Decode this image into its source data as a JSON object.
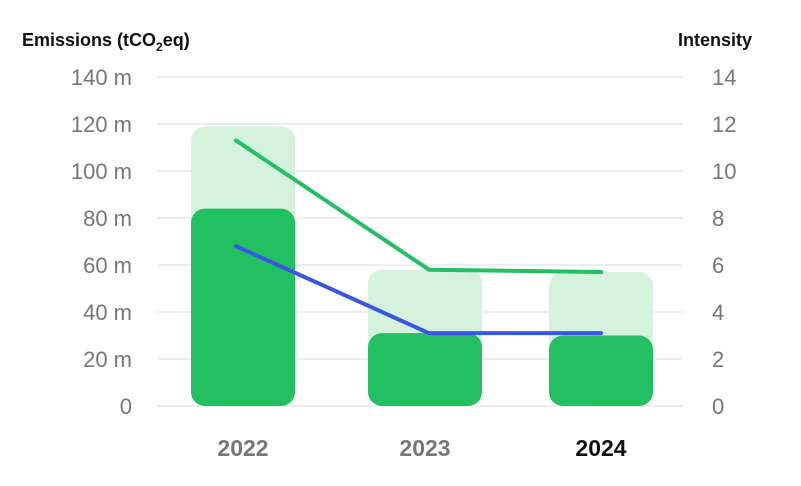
{
  "chart_data": {
    "type": "bar",
    "left_axis_title": "Emissions (tCO",
    "left_axis_title_sub": "2",
    "left_axis_title_suffix": "eq)",
    "right_axis_title": "Intensity",
    "categories": [
      "2022",
      "2023",
      "2024"
    ],
    "selected_category": "2024",
    "left_ticks": [
      "0",
      "20 m",
      "40 m",
      "60 m",
      "80 m",
      "100 m",
      "120 m",
      "140 m"
    ],
    "right_ticks": [
      "0",
      "2",
      "4",
      "6",
      "8",
      "10",
      "12",
      "14"
    ],
    "ylim_left": [
      0,
      140
    ],
    "ylim_right": [
      0,
      14
    ],
    "bar_series": [
      {
        "values": [
          119,
          58,
          57
        ],
        "color": "#d5f2df",
        "stack": "background"
      },
      {
        "values": [
          84,
          31,
          30
        ],
        "color": "#22c062",
        "stack": "foreground"
      }
    ],
    "line_series": [
      {
        "values": [
          11.3,
          5.8,
          5.7
        ],
        "color": "#22c062",
        "axis": "right"
      },
      {
        "values": [
          6.8,
          3.1,
          3.1
        ],
        "color": "#3a55e6",
        "axis": "right"
      }
    ],
    "grid": true
  }
}
